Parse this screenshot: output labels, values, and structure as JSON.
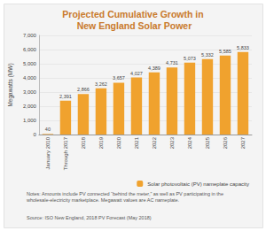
{
  "chart_data": {
    "type": "bar",
    "title": "Projected Cumulative Growth in New England Solar Power",
    "y_label": "Megawatts (MW)",
    "categories": [
      "January 2010",
      "Through 2017",
      "2018",
      "2019",
      "2020",
      "2021",
      "2022",
      "2023",
      "2024",
      "2025",
      "2026",
      "2027"
    ],
    "series": [
      {
        "name": "Solar photovoltaic (PV) nameplate capacity",
        "color": "#f0a22e",
        "values": [
          40,
          2391,
          2866,
          3262,
          3657,
          4027,
          4389,
          4731,
          5073,
          5332,
          5585,
          5833
        ],
        "value_labels": [
          "40",
          "2,391",
          "2,866",
          "3,262",
          "3,657",
          "4,027",
          "4,389",
          "4,731",
          "5,073",
          "5,332",
          "5,585",
          "5,833"
        ]
      }
    ],
    "ylim": [
      0,
      7000
    ],
    "yticks": [
      0,
      {
        "value": 1000,
        "label": "1,000"
      },
      {
        "value": 2000,
        "label": "2,000"
      },
      {
        "value": 3000,
        "label": "3,000"
      },
      {
        "value": 4000,
        "label": "4,000"
      },
      {
        "value": 5000,
        "label": "5,000"
      },
      {
        "value": 6000,
        "label": "6,000"
      },
      {
        "value": 7000,
        "label": "7,000"
      }
    ],
    "grid": true,
    "data_labels": true,
    "legend": "bottom-right",
    "notes": "Notes: Amounts include PV connected “behind the meter,” as well as PV participating in the wholesale-electricity marketplace. Megawatt values are AC nameplate.",
    "source": "Source: ISO New England, 2018 PV Forecast (May 2018)"
  }
}
